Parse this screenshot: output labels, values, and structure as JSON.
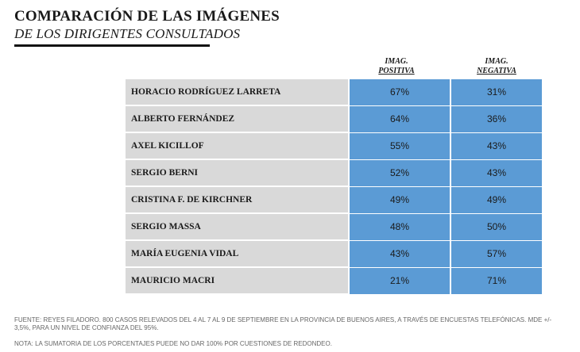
{
  "header": {
    "title": "COMPARACIÓN DE LAS IMÁGENES",
    "subtitle": "DE LOS DIRIGENTES CONSULTADOS"
  },
  "columns": {
    "positive_1": "IMAG.",
    "positive_2": "POSITIVA",
    "negative_1": "IMAG.",
    "negative_2": "NEGATIVA"
  },
  "colors": {
    "label_bg": "#d9d9d9",
    "value_bg": "#5b9bd5"
  },
  "chart_data": {
    "type": "table",
    "title": "COMPARACIÓN DE LAS IMÁGENES DE LOS DIRIGENTES CONSULTADOS",
    "columns": [
      "IMAG. POSITIVA",
      "IMAG. NEGATIVA"
    ],
    "rows": [
      {
        "name": "HORACIO RODRÍGUEZ LARRETA",
        "positiva": "67%",
        "negativa": "31%"
      },
      {
        "name": "ALBERTO FERNÁNDEZ",
        "positiva": "64%",
        "negativa": "36%"
      },
      {
        "name": "AXEL KICILLOF",
        "positiva": "55%",
        "negativa": "43%"
      },
      {
        "name": "SERGIO BERNI",
        "positiva": "52%",
        "negativa": "43%"
      },
      {
        "name": "CRISTINA F. DE KIRCHNER",
        "positiva": "49%",
        "negativa": "49%"
      },
      {
        "name": "SERGIO MASSA",
        "positiva": "48%",
        "negativa": "50%"
      },
      {
        "name": "MARÍA EUGENIA VIDAL",
        "positiva": "43%",
        "negativa": "57%"
      },
      {
        "name": "MAURICIO MACRI",
        "positiva": "21%",
        "negativa": "71%"
      }
    ]
  },
  "footer": {
    "source": "FUENTE: REYES FILADORO. 800 CASOS RELEVADOS DEL 4 AL 7 AL 9 DE SEPTIEMBRE EN LA PROVINCIA DE BUENOS AIRES, A TRAVÉS DE ENCUESTAS TELEFÓNICAS. MDE +/- 3,5%, PARA UN NIVEL DE CONFIANZA DEL 95%.",
    "note": "NOTA: LA SUMATORIA DE LOS PORCENTAJES PUEDE NO DAR 100% POR CUESTIONES DE REDONDEO."
  }
}
